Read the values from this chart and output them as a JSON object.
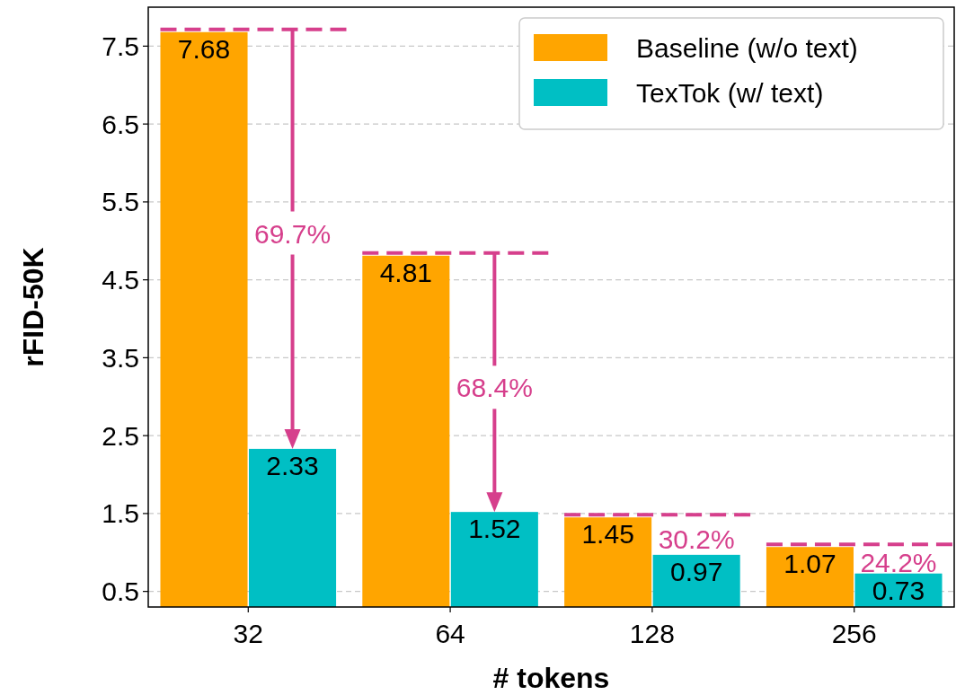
{
  "chart_data": {
    "type": "bar",
    "xlabel": "# tokens",
    "ylabel": "rFID-50K",
    "categories": [
      "32",
      "64",
      "128",
      "256"
    ],
    "series": [
      {
        "name": "Baseline (w/o text)",
        "color": "#ffa500",
        "values": [
          7.68,
          4.81,
          1.45,
          1.07
        ]
      },
      {
        "name": "TexTok (w/ text)",
        "color": "#00bfc4",
        "values": [
          2.33,
          1.52,
          0.97,
          0.73
        ]
      }
    ],
    "ylim": [
      0.3,
      8.0
    ],
    "yticks": [
      0.5,
      1.5,
      2.5,
      3.5,
      4.5,
      5.5,
      6.5,
      7.5
    ],
    "grid": "y",
    "legend": "top right",
    "data_labels": true,
    "annotations": [
      {
        "text": "69.7%",
        "x": "32",
        "y": 5.1
      },
      {
        "text": "68.4%",
        "x": "64",
        "y": 3.12
      },
      {
        "text": "30.2%",
        "x": "128",
        "y": 1.18
      },
      {
        "text": "24.2%",
        "x": "256",
        "y": 0.88
      }
    ]
  }
}
